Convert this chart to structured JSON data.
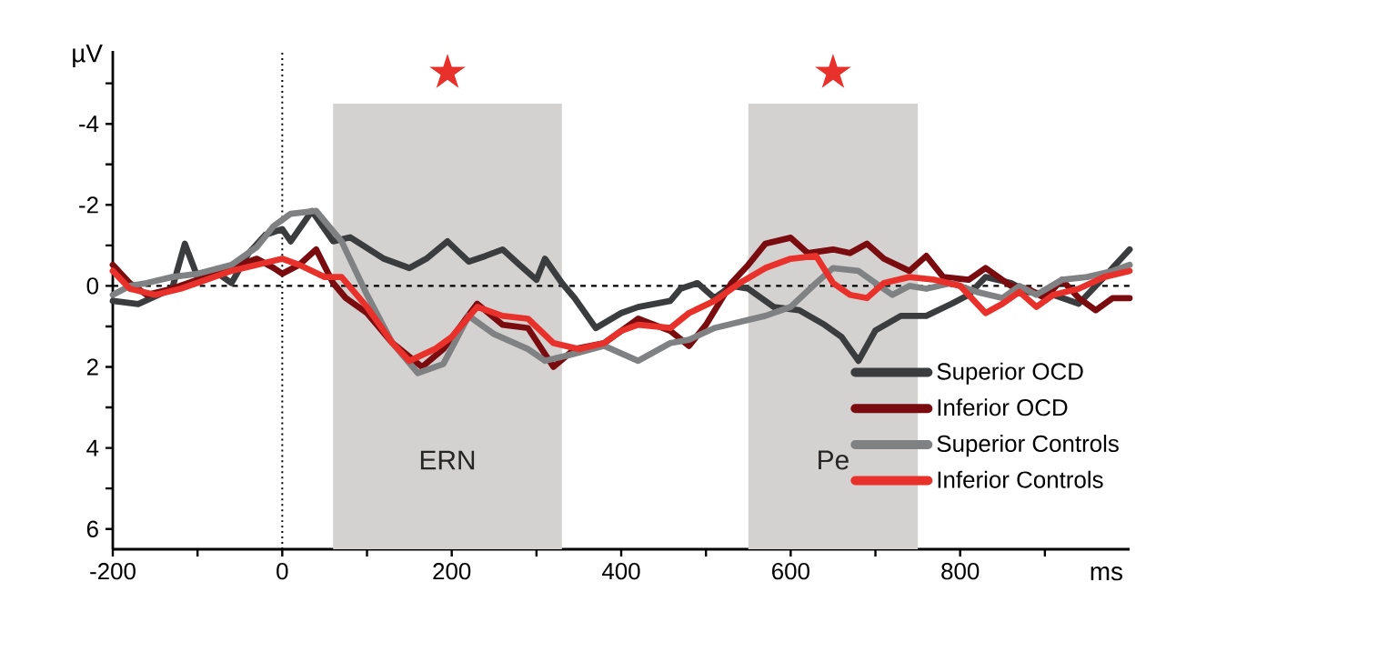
{
  "chart_data": {
    "type": "line",
    "xlabel": "ms",
    "ylabel": "µV",
    "xlim": [
      -200,
      1000
    ],
    "ylim": [
      6.5,
      -5.8
    ],
    "xticks": [
      -200,
      {
        "value": -100,
        "label": null
      },
      0,
      {
        "value": 100,
        "label": null
      },
      200,
      {
        "value": 300,
        "label": null
      },
      400,
      {
        "value": 500,
        "label": null
      },
      600,
      {
        "value": 700,
        "label": null
      },
      800,
      {
        "value": 900,
        "label": null
      }
    ],
    "yticks": [
      {
        "value": -5,
        "label": null
      },
      -4,
      {
        "value": -3,
        "label": null
      },
      -2,
      {
        "value": -1,
        "label": null
      },
      0,
      {
        "value": 1,
        "label": null
      },
      2,
      {
        "value": 3,
        "label": null
      },
      4,
      {
        "value": 5,
        "label": null
      },
      6
    ],
    "legend": "bottom right",
    "series": [
      {
        "name": "Superior OCD",
        "color": "#3a3c3e",
        "x": [
          -200,
          -170,
          -130,
          -115,
          -100,
          -80,
          -60,
          -40,
          -20,
          0,
          10,
          35,
          60,
          80,
          120,
          150,
          170,
          195,
          220,
          240,
          260,
          280,
          300,
          310,
          330,
          345,
          370,
          400,
          420,
          458,
          470,
          490,
          510,
          530,
          550,
          560,
          580,
          610,
          640,
          660,
          680,
          700,
          730,
          760,
          790,
          810,
          830,
          860,
          880,
          910,
          940,
          970,
          1000
        ],
        "values": [
          0.37,
          0.45,
          0.07,
          -1.04,
          -0.22,
          -0.37,
          -0.07,
          -0.8,
          -1.26,
          -1.4,
          -1.1,
          -1.85,
          -1.1,
          -1.2,
          -0.67,
          -0.44,
          -0.67,
          -1.1,
          -0.6,
          -0.74,
          -0.9,
          -0.52,
          -0.15,
          -0.67,
          -0.07,
          0.3,
          1.04,
          0.67,
          0.52,
          0.37,
          0.07,
          -0.07,
          0.3,
          0,
          0.07,
          0.22,
          0.52,
          0.6,
          0.96,
          1.26,
          1.85,
          1.1,
          0.74,
          0.74,
          0.44,
          0.22,
          -0.22,
          -0.07,
          0.15,
          0.22,
          0.44,
          -0.22,
          -0.9
        ]
      },
      {
        "name": "Inferior OCD",
        "color": "#7a0c10",
        "x": [
          -200,
          -180,
          -160,
          -130,
          -100,
          -60,
          -30,
          -10,
          0,
          20,
          40,
          60,
          75,
          100,
          130,
          165,
          190,
          230,
          260,
          290,
          320,
          345,
          380,
          420,
          458,
          480,
          500,
          530,
          550,
          570,
          600,
          620,
          650,
          670,
          690,
          710,
          740,
          760,
          780,
          810,
          830,
          860,
          880,
          900,
          920,
          940,
          960,
          980,
          1000
        ],
        "values": [
          -0.52,
          -0.07,
          0.22,
          0.07,
          -0.15,
          -0.44,
          -0.67,
          -0.44,
          -0.3,
          -0.52,
          -0.9,
          -0.07,
          0.3,
          0.67,
          1.41,
          2.0,
          1.56,
          0.44,
          0.96,
          1.04,
          2.0,
          1.56,
          1.41,
          0.81,
          1.11,
          1.48,
          0.96,
          -0.07,
          -0.52,
          -1.04,
          -1.19,
          -0.81,
          -0.9,
          -0.81,
          -1.04,
          -0.67,
          -0.37,
          -0.74,
          -0.22,
          -0.15,
          -0.44,
          0,
          0.07,
          0.3,
          -0.15,
          0.3,
          0.6,
          0.3,
          0.3
        ]
      },
      {
        "name": "Superior Controls",
        "color": "#808183",
        "x": [
          -200,
          -180,
          -160,
          -130,
          -100,
          -60,
          -30,
          -10,
          10,
          40,
          70,
          100,
          130,
          160,
          190,
          220,
          250,
          290,
          310,
          340,
          380,
          420,
          458,
          480,
          510,
          540,
          570,
          600,
          630,
          650,
          680,
          700,
          720,
          740,
          760,
          790,
          820,
          850,
          870,
          890,
          920,
          950,
          980,
          1000
        ],
        "values": [
          0.22,
          0,
          -0.07,
          -0.22,
          -0.3,
          -0.52,
          -0.96,
          -1.48,
          -1.78,
          -1.85,
          -1.1,
          0.22,
          1.41,
          2.15,
          1.93,
          0.74,
          1.19,
          1.56,
          1.85,
          1.7,
          1.48,
          1.85,
          1.41,
          1.33,
          1.04,
          0.89,
          0.74,
          0.52,
          -0.07,
          -0.44,
          -0.37,
          -0.07,
          0.22,
          0,
          0.07,
          -0.07,
          0.15,
          0.3,
          0,
          0.22,
          -0.15,
          -0.22,
          -0.37,
          -0.52
        ]
      },
      {
        "name": "Inferior Controls",
        "color": "#e8312a",
        "x": [
          -200,
          -180,
          -150,
          -120,
          -90,
          -60,
          -30,
          0,
          20,
          50,
          70,
          100,
          130,
          150,
          180,
          200,
          230,
          260,
          290,
          320,
          350,
          380,
          400,
          420,
          458,
          480,
          510,
          540,
          570,
          600,
          630,
          650,
          670,
          690,
          710,
          740,
          770,
          800,
          830,
          850,
          870,
          890,
          910,
          940,
          970,
          1000
        ],
        "values": [
          -0.37,
          0.07,
          0.22,
          0.07,
          -0.15,
          -0.37,
          -0.52,
          -0.67,
          -0.52,
          -0.22,
          -0.22,
          0.52,
          1.41,
          1.85,
          1.56,
          1.26,
          0.52,
          0.74,
          0.81,
          1.41,
          1.56,
          1.41,
          1.11,
          0.96,
          1.04,
          0.67,
          0.37,
          -0.07,
          -0.44,
          -0.67,
          -0.74,
          -0.07,
          0.22,
          0.3,
          -0.07,
          -0.22,
          -0.15,
          0,
          0.67,
          0.44,
          0.15,
          0.52,
          0.22,
          0.07,
          -0.22,
          -0.37
        ]
      }
    ],
    "ref_lines": [
      {
        "axis": "y",
        "value": 0,
        "color": "#000000",
        "line_style": "dashed"
      },
      {
        "axis": "x",
        "value": 0,
        "color": "#000000",
        "line_style": "dotted"
      }
    ],
    "bands": [
      {
        "axis": "x",
        "from": 60,
        "to": 330,
        "label": "ERN",
        "color": "#d4d2d0"
      },
      {
        "axis": "x",
        "from": 550,
        "to": 750,
        "label": "Pe",
        "color": "#d4d2d0"
      }
    ],
    "annotations": [
      "★",
      "★"
    ]
  }
}
